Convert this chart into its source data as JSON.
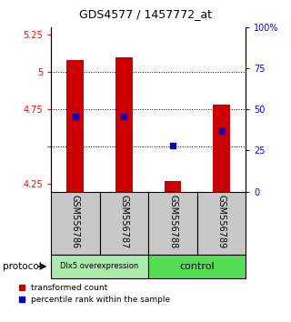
{
  "title": "GDS4577 / 1457772_at",
  "samples": [
    "GSM556786",
    "GSM556787",
    "GSM556788",
    "GSM556789"
  ],
  "ylim_left": [
    4.2,
    5.3
  ],
  "ylim_right": [
    0,
    100
  ],
  "yticks_left": [
    4.25,
    4.5,
    4.75,
    5.0,
    5.25
  ],
  "ytick_labels_left": [
    "4.25",
    "",
    "4.75",
    "5",
    "5.25"
  ],
  "ytick_labels_right": [
    "0",
    "25",
    "50",
    "75",
    "100%"
  ],
  "hlines": [
    4.5,
    4.75,
    5.0
  ],
  "bar_values": [
    5.08,
    5.1,
    4.27,
    4.78
  ],
  "bar_bottom": 4.2,
  "percentile_values": [
    46,
    46,
    28,
    37
  ],
  "bar_color": "#CC0000",
  "percentile_color": "#0000CC",
  "bar_width": 0.35,
  "group1_label": "Dlx5 overexpression",
  "group2_label": "control",
  "group1_color": "#AAEAAA",
  "group2_color": "#55DD55",
  "sample_box_color": "#C8C8C8",
  "legend_red": "transformed count",
  "legend_blue": "percentile rank within the sample",
  "protocol_label": "protocol",
  "title_fontsize": 9,
  "tick_fontsize": 7,
  "label_fontsize": 7,
  "group_fontsize1": 6,
  "group_fontsize2": 8
}
